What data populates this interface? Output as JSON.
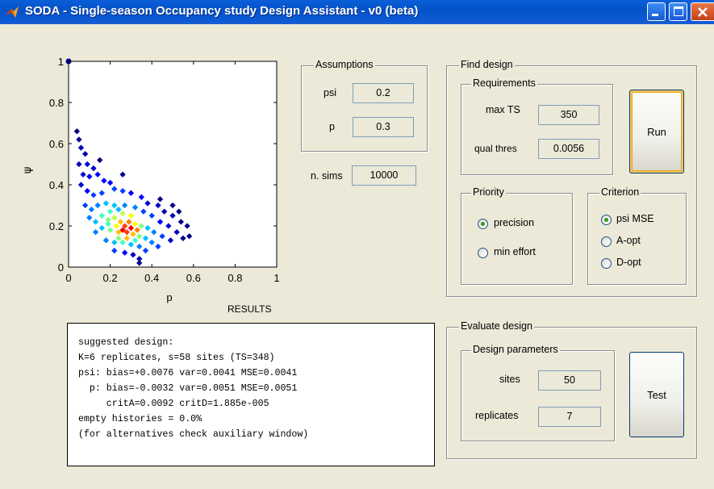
{
  "window": {
    "title": "SODA - Single-season Occupancy study Design Assistant - v0 (beta)"
  },
  "assumptions": {
    "title": "Assumptions",
    "psi_label": "psi",
    "psi_value": "0.2",
    "p_label": "p",
    "p_value": "0.3"
  },
  "nsims": {
    "label": "n. sims",
    "value": "10000"
  },
  "find_design": {
    "title": "Find design",
    "requirements": {
      "title": "Requirements",
      "max_ts_label": "max TS",
      "max_ts_value": "350",
      "qual_thres_label": "qual thres",
      "qual_thres_value": "0.0056"
    },
    "run_label": "Run",
    "priority": {
      "title": "Priority",
      "options": [
        "precision",
        "min effort"
      ],
      "selected": "precision"
    },
    "criterion": {
      "title": "Criterion",
      "options": [
        "psi MSE",
        "A-opt",
        "D-opt"
      ],
      "selected": "psi MSE"
    }
  },
  "evaluate_design": {
    "title": "Evaluate design",
    "params": {
      "title": "Design parameters",
      "sites_label": "sites",
      "sites_value": "50",
      "replicates_label": "replicates",
      "replicates_value": "7"
    },
    "test_label": "Test"
  },
  "results": {
    "title": "RESULTS",
    "lines": [
      "suggested design:",
      "K=6 replicates, s=58 sites (TS=348)",
      "psi: bias=+0.0076 var=0.0041 MSE=0.0041",
      "  p: bias=-0.0032 var=0.0051 MSE=0.0051",
      "     critA=0.0092 critD=1.885e-005",
      "empty histories = 0.0%",
      "(for alternatives check auxiliary window)"
    ]
  },
  "chart_data": {
    "type": "scatter",
    "xlabel": "p",
    "ylabel": "ψ",
    "xlim": [
      0,
      1
    ],
    "ylim": [
      0,
      1
    ],
    "xticks": [
      "0",
      "0.2",
      "0.4",
      "0.6",
      "0.8",
      "1"
    ],
    "yticks": [
      "0",
      "0.2",
      "0.4",
      "0.6",
      "0.8",
      "1"
    ],
    "grid": false,
    "points_note_color": "density colored (blue low, red high)",
    "series": [
      {
        "points": [
          {
            "x": 0.0,
            "y": 1.0,
            "c": "#00008b"
          },
          {
            "x": 0.04,
            "y": 0.66,
            "c": "#00008b"
          },
          {
            "x": 0.05,
            "y": 0.62,
            "c": "#00008b"
          },
          {
            "x": 0.06,
            "y": 0.58,
            "c": "#0000b0"
          },
          {
            "x": 0.08,
            "y": 0.55,
            "c": "#0000b0"
          },
          {
            "x": 0.05,
            "y": 0.5,
            "c": "#0000b0"
          },
          {
            "x": 0.09,
            "y": 0.5,
            "c": "#0000d0"
          },
          {
            "x": 0.12,
            "y": 0.48,
            "c": "#0000d0"
          },
          {
            "x": 0.07,
            "y": 0.45,
            "c": "#0000d0"
          },
          {
            "x": 0.1,
            "y": 0.44,
            "c": "#0000ff"
          },
          {
            "x": 0.14,
            "y": 0.45,
            "c": "#0000ff"
          },
          {
            "x": 0.17,
            "y": 0.42,
            "c": "#0000ff"
          },
          {
            "x": 0.2,
            "y": 0.41,
            "c": "#0000ff"
          },
          {
            "x": 0.06,
            "y": 0.4,
            "c": "#0000d0"
          },
          {
            "x": 0.09,
            "y": 0.37,
            "c": "#0000ff"
          },
          {
            "x": 0.12,
            "y": 0.35,
            "c": "#0040ff"
          },
          {
            "x": 0.16,
            "y": 0.36,
            "c": "#0040ff"
          },
          {
            "x": 0.22,
            "y": 0.38,
            "c": "#0040ff"
          },
          {
            "x": 0.26,
            "y": 0.37,
            "c": "#0040ff"
          },
          {
            "x": 0.3,
            "y": 0.36,
            "c": "#0000ff"
          },
          {
            "x": 0.35,
            "y": 0.34,
            "c": "#0000ff"
          },
          {
            "x": 0.38,
            "y": 0.31,
            "c": "#0000d0"
          },
          {
            "x": 0.43,
            "y": 0.3,
            "c": "#0000d0"
          },
          {
            "x": 0.46,
            "y": 0.27,
            "c": "#0000b0"
          },
          {
            "x": 0.5,
            "y": 0.25,
            "c": "#0000b0"
          },
          {
            "x": 0.54,
            "y": 0.22,
            "c": "#00008b"
          },
          {
            "x": 0.57,
            "y": 0.2,
            "c": "#00008b"
          },
          {
            "x": 0.08,
            "y": 0.3,
            "c": "#0040ff"
          },
          {
            "x": 0.11,
            "y": 0.28,
            "c": "#0080ff"
          },
          {
            "x": 0.14,
            "y": 0.3,
            "c": "#0080ff"
          },
          {
            "x": 0.18,
            "y": 0.31,
            "c": "#00c0ff"
          },
          {
            "x": 0.22,
            "y": 0.3,
            "c": "#00c0ff"
          },
          {
            "x": 0.27,
            "y": 0.3,
            "c": "#0080ff"
          },
          {
            "x": 0.32,
            "y": 0.29,
            "c": "#0080ff"
          },
          {
            "x": 0.36,
            "y": 0.27,
            "c": "#0040ff"
          },
          {
            "x": 0.4,
            "y": 0.25,
            "c": "#0040ff"
          },
          {
            "x": 0.44,
            "y": 0.22,
            "c": "#0000ff"
          },
          {
            "x": 0.48,
            "y": 0.2,
            "c": "#0000d0"
          },
          {
            "x": 0.52,
            "y": 0.17,
            "c": "#0000b0"
          },
          {
            "x": 0.55,
            "y": 0.14,
            "c": "#00008b"
          },
          {
            "x": 0.1,
            "y": 0.24,
            "c": "#0080ff"
          },
          {
            "x": 0.13,
            "y": 0.22,
            "c": "#00c0ff"
          },
          {
            "x": 0.16,
            "y": 0.25,
            "c": "#40ffc0"
          },
          {
            "x": 0.19,
            "y": 0.23,
            "c": "#80ff80"
          },
          {
            "x": 0.22,
            "y": 0.24,
            "c": "#c0ff40"
          },
          {
            "x": 0.25,
            "y": 0.22,
            "c": "#ffc000"
          },
          {
            "x": 0.27,
            "y": 0.2,
            "c": "#ff4000"
          },
          {
            "x": 0.29,
            "y": 0.22,
            "c": "#ff8000"
          },
          {
            "x": 0.32,
            "y": 0.21,
            "c": "#ffff00"
          },
          {
            "x": 0.35,
            "y": 0.2,
            "c": "#80ff80"
          },
          {
            "x": 0.38,
            "y": 0.19,
            "c": "#00c0ff"
          },
          {
            "x": 0.41,
            "y": 0.17,
            "c": "#0080ff"
          },
          {
            "x": 0.45,
            "y": 0.15,
            "c": "#0040ff"
          },
          {
            "x": 0.49,
            "y": 0.13,
            "c": "#0000d0"
          },
          {
            "x": 0.13,
            "y": 0.17,
            "c": "#0080ff"
          },
          {
            "x": 0.16,
            "y": 0.19,
            "c": "#00c0ff"
          },
          {
            "x": 0.2,
            "y": 0.18,
            "c": "#80ff80"
          },
          {
            "x": 0.24,
            "y": 0.17,
            "c": "#ffc000"
          },
          {
            "x": 0.28,
            "y": 0.17,
            "c": "#ff4000"
          },
          {
            "x": 0.31,
            "y": 0.16,
            "c": "#ffc000"
          },
          {
            "x": 0.34,
            "y": 0.15,
            "c": "#80ff80"
          },
          {
            "x": 0.37,
            "y": 0.14,
            "c": "#00c0ff"
          },
          {
            "x": 0.4,
            "y": 0.12,
            "c": "#0080ff"
          },
          {
            "x": 0.43,
            "y": 0.1,
            "c": "#0040ff"
          },
          {
            "x": 0.18,
            "y": 0.13,
            "c": "#0080ff"
          },
          {
            "x": 0.22,
            "y": 0.12,
            "c": "#00c0ff"
          },
          {
            "x": 0.26,
            "y": 0.12,
            "c": "#40ffc0"
          },
          {
            "x": 0.3,
            "y": 0.11,
            "c": "#00c0ff"
          },
          {
            "x": 0.34,
            "y": 0.1,
            "c": "#0080ff"
          },
          {
            "x": 0.37,
            "y": 0.08,
            "c": "#0040ff"
          },
          {
            "x": 0.22,
            "y": 0.08,
            "c": "#0040ff"
          },
          {
            "x": 0.27,
            "y": 0.07,
            "c": "#0000ff"
          },
          {
            "x": 0.31,
            "y": 0.06,
            "c": "#0000d0"
          },
          {
            "x": 0.34,
            "y": 0.04,
            "c": "#0000b0"
          },
          {
            "x": 0.34,
            "y": 0.02,
            "c": "#00008b"
          },
          {
            "x": 0.44,
            "y": 0.33,
            "c": "#00008b"
          },
          {
            "x": 0.5,
            "y": 0.3,
            "c": "#00008b"
          },
          {
            "x": 0.26,
            "y": 0.45,
            "c": "#00008b"
          },
          {
            "x": 0.15,
            "y": 0.52,
            "c": "#00008b"
          },
          {
            "x": 0.53,
            "y": 0.27,
            "c": "#00008b"
          },
          {
            "x": 0.58,
            "y": 0.15,
            "c": "#00008b"
          },
          {
            "x": 0.24,
            "y": 0.28,
            "c": "#00c0ff"
          },
          {
            "x": 0.2,
            "y": 0.27,
            "c": "#40ffc0"
          },
          {
            "x": 0.3,
            "y": 0.25,
            "c": "#ffff00"
          },
          {
            "x": 0.26,
            "y": 0.26,
            "c": "#c0ff40"
          },
          {
            "x": 0.23,
            "y": 0.2,
            "c": "#ffff00"
          },
          {
            "x": 0.26,
            "y": 0.18,
            "c": "#ff0000"
          },
          {
            "x": 0.3,
            "y": 0.19,
            "c": "#ff0000"
          },
          {
            "x": 0.33,
            "y": 0.18,
            "c": "#ff8000"
          },
          {
            "x": 0.28,
            "y": 0.14,
            "c": "#ffc000"
          },
          {
            "x": 0.24,
            "y": 0.14,
            "c": "#80ff80"
          },
          {
            "x": 0.32,
            "y": 0.13,
            "c": "#40ffc0"
          },
          {
            "x": 0.19,
            "y": 0.21,
            "c": "#40ffc0"
          }
        ]
      }
    ]
  }
}
